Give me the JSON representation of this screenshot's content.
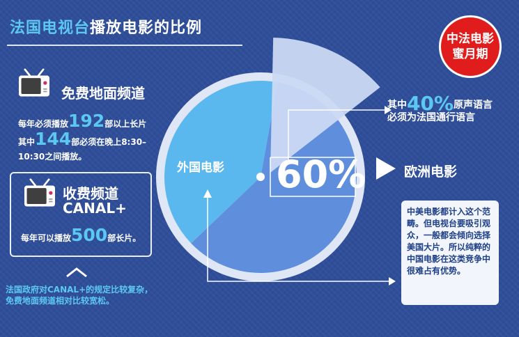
{
  "title": {
    "part1": "法国电视台",
    "part2": "播放电影的比例"
  },
  "badge": {
    "line1": "中法电影",
    "line2": "蜜月期"
  },
  "free_channel": {
    "heading": "免费地面频道",
    "line1_pre": "每年必须播放",
    "line1_num": "192",
    "line1_post": "部以上长片",
    "line2_pre": "其中",
    "line2_num": "144",
    "line2_post": "部必须在晚上8:30–",
    "line3": "10:30之间播放。"
  },
  "paid_channel": {
    "heading1": "收费频道",
    "heading2": "CANAL+",
    "line_pre": "每年可以播放",
    "line_num": "500",
    "line_post": "部长片。"
  },
  "note": {
    "line1": "法国政府对CANAL+的规定比较复杂，",
    "line2": "免费地面频道相对比较宽松。"
  },
  "callout40": {
    "pre": "其中",
    "num": "40%",
    "post": "原声语言",
    "line2": "必须为法国通行语言"
  },
  "infobox": {
    "text": "中美电影都计入这个范畴。但电视台要吸引观众，一般都会倾向选择美国大片。所以纯粹的中国电影在这类竞争中很难占有优势。"
  },
  "chart_data": {
    "type": "pie",
    "series": [
      {
        "name": "欧洲电影",
        "value": 60
      },
      {
        "name": "外国电影",
        "value": 40
      }
    ],
    "center_label": "60%",
    "sub_breakdown": {
      "label": "其中40%原声语言必须为法国通行语言",
      "value": 40
    },
    "colors": {
      "欧洲电影": "#5f8fdc",
      "外国电影": "#5bb8ee",
      "sub": "#cbd9f3"
    }
  },
  "colors": {
    "background": "#2f4e9a",
    "accent": "#5cc8f2",
    "badge": "#e11c1c"
  }
}
